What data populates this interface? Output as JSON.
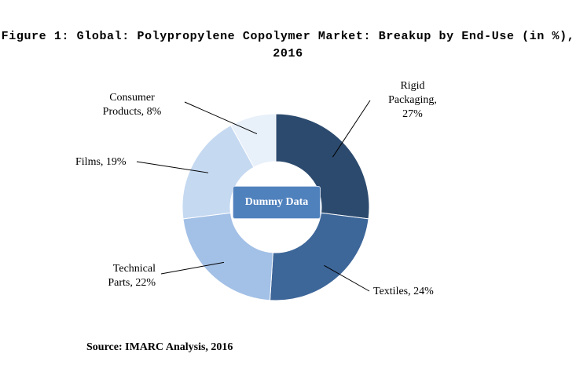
{
  "chart_data": {
    "type": "pie",
    "variant": "donut",
    "title_lines": [
      "Figure 1: Global: Polypropylene Copolymer Market: Breakup by End-Use (in %),",
      "2016"
    ],
    "slices": [
      {
        "label_lines": [
          "Rigid",
          "Packaging,",
          "27%"
        ],
        "category": "Rigid Packaging",
        "value": 27,
        "color": "#2c4a6e"
      },
      {
        "label_lines": [
          "Textiles, 24%"
        ],
        "category": "Textiles",
        "value": 24,
        "color": "#3d6699"
      },
      {
        "label_lines": [
          "Technical",
          "Parts, 22%"
        ],
        "category": "Technical Parts",
        "value": 22,
        "color": "#a3c0e6"
      },
      {
        "label_lines": [
          "Films, 19%"
        ],
        "category": "Films",
        "value": 19,
        "color": "#c5d9f1"
      },
      {
        "label_lines": [
          "Consumer",
          "Products, 8%"
        ],
        "category": "Consumer Products",
        "value": 8,
        "color": "#e8f0fa"
      }
    ],
    "center_label": "Dummy Data",
    "source": "Source: IMARC Analysis, 2016"
  }
}
